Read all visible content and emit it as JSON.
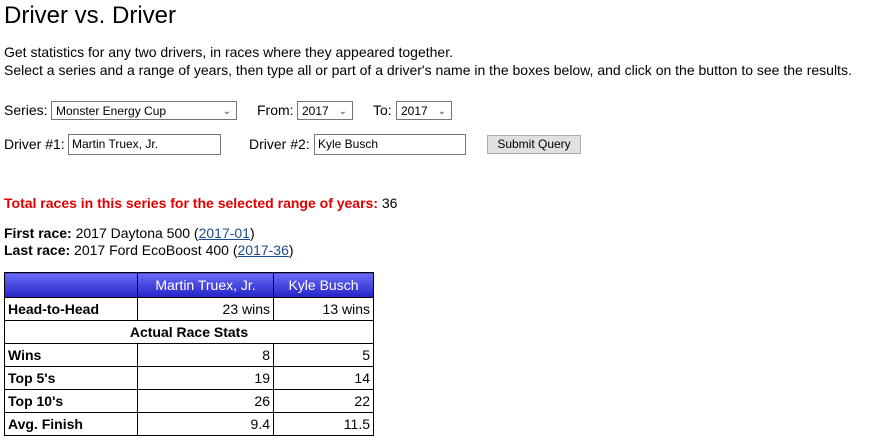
{
  "title": "Driver vs. Driver",
  "intro": [
    "Get statistics for any two drivers, in races where they appeared together.",
    "Select a series and a range of years, then type all or part of a driver's name in the boxes below, and click on the button to see the results."
  ],
  "form": {
    "series_label": "Series:",
    "series": "Monster Energy Cup",
    "from_label": "From:",
    "from": "2017",
    "to_label": "To:",
    "to": "2017",
    "driver1_label": "Driver #1:",
    "driver1": "Martin Truex, Jr.",
    "driver2_label": "Driver #2:",
    "driver2": "Kyle Busch",
    "submit": "Submit Query"
  },
  "results": {
    "total_label": "Total races in this series for the selected range of years:",
    "total": "36",
    "first_label": "First race:",
    "first_race": "2017 Daytona 500",
    "first_link": "2017-01",
    "last_label": "Last race:",
    "last_race": "2017 Ford EcoBoost 400",
    "last_link": "2017-36"
  },
  "table": {
    "headers": [
      "",
      "Martin Truex, Jr.",
      "Kyle Busch"
    ],
    "h2h": [
      "Head-to-Head",
      "23 wins",
      "13 wins"
    ],
    "section": "Actual Race Stats",
    "rows": [
      [
        "Wins",
        "8",
        "5"
      ],
      [
        "Top 5's",
        "19",
        "14"
      ],
      [
        "Top 10's",
        "26",
        "22"
      ],
      [
        "Avg. Finish",
        "9.4",
        "11.5"
      ]
    ]
  }
}
